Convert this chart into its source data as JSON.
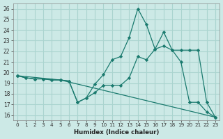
{
  "xlabel": "Humidex (Indice chaleur)",
  "bg_color": "#cce9e6",
  "grid_color": "#aad4cf",
  "line_color": "#1a7a6e",
  "ylim": [
    15.5,
    26.5
  ],
  "xlim": [
    -0.5,
    23.5
  ],
  "x_ticks": [
    0,
    1,
    2,
    3,
    4,
    5,
    6,
    7,
    8,
    9,
    10,
    11,
    12,
    13,
    14,
    15,
    16,
    17,
    18,
    19,
    20,
    21,
    22,
    23
  ],
  "y_ticks": [
    16,
    17,
    18,
    19,
    20,
    21,
    22,
    23,
    24,
    25,
    26
  ],
  "series1_x": [
    0,
    1,
    2,
    3,
    4,
    5,
    6,
    7,
    8,
    9,
    10,
    11,
    12,
    13,
    14,
    15,
    16,
    17,
    18,
    19,
    20,
    21,
    22,
    23
  ],
  "series1_y": [
    19.7,
    19.5,
    19.4,
    19.4,
    19.3,
    19.3,
    19.2,
    17.2,
    17.6,
    18.1,
    18.8,
    18.8,
    18.8,
    19.5,
    21.5,
    21.2,
    22.2,
    22.5,
    22.1,
    21.0,
    17.2,
    17.2,
    16.3,
    15.8
  ],
  "series2_x": [
    0,
    1,
    2,
    3,
    4,
    5,
    6,
    7,
    8,
    9,
    10,
    11,
    12,
    13,
    14,
    15,
    16,
    17,
    18,
    19,
    20,
    21,
    22,
    23
  ],
  "series2_y": [
    19.7,
    19.5,
    19.4,
    19.4,
    19.3,
    19.3,
    19.2,
    17.2,
    17.6,
    18.9,
    19.8,
    21.2,
    21.5,
    23.3,
    26.0,
    24.5,
    22.2,
    23.8,
    22.1,
    22.1,
    22.1,
    22.1,
    17.2,
    15.8
  ],
  "series3_x": [
    0,
    5,
    23
  ],
  "series3_y": [
    19.7,
    19.3,
    15.8
  ]
}
